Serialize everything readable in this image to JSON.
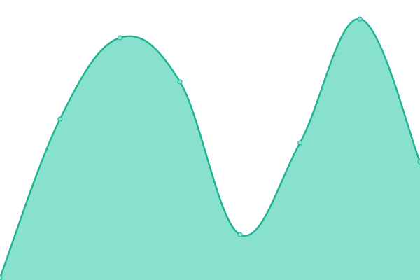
{
  "chart_data": {
    "type": "area",
    "values": [
      3,
      230,
      346,
      283,
      65,
      196,
      373,
      169
    ],
    "ylim": [
      0,
      400
    ],
    "color": "#1db393",
    "fill": "#88e0cf",
    "markers": true
  }
}
